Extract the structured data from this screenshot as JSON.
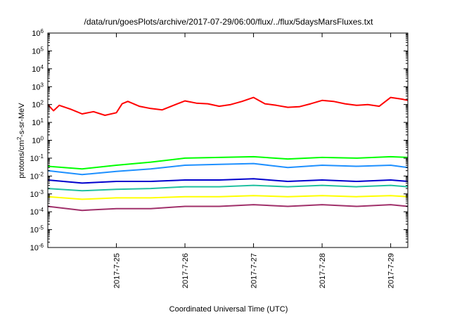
{
  "chart_data": {
    "type": "line",
    "title": "/data/run/goesPlots/archive/2017-07-29/06:00/flux/../flux/5daysMarsFluxes.txt",
    "xlabel": "Coordinated Universal Time (UTC)",
    "ylabel_main": "protons/cm",
    "ylabel_sup": "2",
    "ylabel_rest": "-s-sr-MeV",
    "y_scale": "log",
    "ylim": [
      1e-06,
      1000000.0
    ],
    "xlim": [
      "2017-07-24 00:00",
      "2017-07-29 06:00"
    ],
    "grid": false,
    "legend": "none",
    "y_ticks": [
      {
        "exp": -6,
        "base": "10",
        "sup": "-6"
      },
      {
        "exp": -5,
        "base": "10",
        "sup": "-5"
      },
      {
        "exp": -4,
        "base": "10",
        "sup": "-4"
      },
      {
        "exp": -3,
        "base": "10",
        "sup": "-3"
      },
      {
        "exp": -2,
        "base": "10",
        "sup": "-2"
      },
      {
        "exp": -1,
        "base": "10",
        "sup": "-1"
      },
      {
        "exp": 0,
        "base": "10",
        "sup": "0"
      },
      {
        "exp": 1,
        "base": "10",
        "sup": "1"
      },
      {
        "exp": 2,
        "base": "10",
        "sup": "2"
      },
      {
        "exp": 3,
        "base": "10",
        "sup": "3"
      },
      {
        "exp": 4,
        "base": "10",
        "sup": "4"
      },
      {
        "exp": 5,
        "base": "10",
        "sup": "5"
      },
      {
        "exp": 6,
        "base": "10",
        "sup": "6"
      }
    ],
    "x_ticks": [
      {
        "label": "2017-7-25",
        "x": "2017-07-25 00:00"
      },
      {
        "label": "2017-7-26",
        "x": "2017-07-26 00:00"
      },
      {
        "label": "2017-7-27",
        "x": "2017-07-27 00:00"
      },
      {
        "label": "2017-7-28",
        "x": "2017-07-28 00:00"
      },
      {
        "label": "2017-7-29",
        "x": "2017-07-29 00:00"
      }
    ],
    "series": [
      {
        "color": "#ff0000",
        "x": [
          "2017-07-24 00:00",
          "2017-07-24 02:00",
          "2017-07-24 04:00",
          "2017-07-24 08:00",
          "2017-07-24 12:00",
          "2017-07-24 16:00",
          "2017-07-24 20:00",
          "2017-07-25 00:00",
          "2017-07-25 02:00",
          "2017-07-25 04:00",
          "2017-07-25 08:00",
          "2017-07-25 12:00",
          "2017-07-25 16:00",
          "2017-07-25 20:00",
          "2017-07-26 00:00",
          "2017-07-26 04:00",
          "2017-07-26 08:00",
          "2017-07-26 12:00",
          "2017-07-26 16:00",
          "2017-07-26 20:00",
          "2017-07-27 00:00",
          "2017-07-27 04:00",
          "2017-07-27 08:00",
          "2017-07-27 12:00",
          "2017-07-27 16:00",
          "2017-07-27 20:00",
          "2017-07-28 00:00",
          "2017-07-28 04:00",
          "2017-07-28 08:00",
          "2017-07-28 12:00",
          "2017-07-28 16:00",
          "2017-07-28 20:00",
          "2017-07-29 00:00",
          "2017-07-29 04:00",
          "2017-07-29 06:00"
        ],
        "y": [
          100,
          45,
          90,
          55,
          30,
          40,
          25,
          35,
          110,
          150,
          80,
          60,
          50,
          90,
          160,
          120,
          110,
          80,
          100,
          150,
          250,
          110,
          90,
          70,
          75,
          110,
          170,
          150,
          110,
          90,
          100,
          80,
          250,
          200,
          170
        ]
      },
      {
        "color": "#00ff00",
        "x": [
          "2017-07-24 00:00",
          "2017-07-24 12:00",
          "2017-07-25 00:00",
          "2017-07-25 12:00",
          "2017-07-26 00:00",
          "2017-07-26 12:00",
          "2017-07-27 00:00",
          "2017-07-27 12:00",
          "2017-07-28 00:00",
          "2017-07-28 12:00",
          "2017-07-29 00:00",
          "2017-07-29 06:00"
        ],
        "y": [
          0.035,
          0.025,
          0.04,
          0.06,
          0.1,
          0.11,
          0.12,
          0.09,
          0.11,
          0.1,
          0.12,
          0.11
        ]
      },
      {
        "color": "#1e90ff",
        "x": [
          "2017-07-24 00:00",
          "2017-07-24 12:00",
          "2017-07-25 00:00",
          "2017-07-25 12:00",
          "2017-07-26 00:00",
          "2017-07-26 12:00",
          "2017-07-27 00:00",
          "2017-07-27 12:00",
          "2017-07-28 00:00",
          "2017-07-28 12:00",
          "2017-07-29 00:00",
          "2017-07-29 06:00"
        ],
        "y": [
          0.02,
          0.012,
          0.018,
          0.025,
          0.04,
          0.045,
          0.05,
          0.03,
          0.04,
          0.035,
          0.04,
          0.03
        ]
      },
      {
        "color": "#0000cd",
        "x": [
          "2017-07-24 00:00",
          "2017-07-24 12:00",
          "2017-07-25 00:00",
          "2017-07-25 12:00",
          "2017-07-26 00:00",
          "2017-07-26 12:00",
          "2017-07-27 00:00",
          "2017-07-27 12:00",
          "2017-07-28 00:00",
          "2017-07-28 12:00",
          "2017-07-29 00:00",
          "2017-07-29 06:00"
        ],
        "y": [
          0.006,
          0.004,
          0.005,
          0.005,
          0.006,
          0.006,
          0.007,
          0.005,
          0.006,
          0.005,
          0.006,
          0.005
        ]
      },
      {
        "color": "#20c0a0",
        "x": [
          "2017-07-24 00:00",
          "2017-07-24 12:00",
          "2017-07-25 00:00",
          "2017-07-25 12:00",
          "2017-07-26 00:00",
          "2017-07-26 12:00",
          "2017-07-27 00:00",
          "2017-07-27 12:00",
          "2017-07-28 00:00",
          "2017-07-28 12:00",
          "2017-07-29 00:00",
          "2017-07-29 06:00"
        ],
        "y": [
          0.002,
          0.0015,
          0.0018,
          0.002,
          0.0025,
          0.0025,
          0.003,
          0.0025,
          0.003,
          0.0025,
          0.003,
          0.0025
        ]
      },
      {
        "color": "#ffff00",
        "x": [
          "2017-07-24 00:00",
          "2017-07-24 12:00",
          "2017-07-25 00:00",
          "2017-07-25 12:00",
          "2017-07-26 00:00",
          "2017-07-26 12:00",
          "2017-07-27 00:00",
          "2017-07-27 12:00",
          "2017-07-28 00:00",
          "2017-07-28 12:00",
          "2017-07-29 00:00",
          "2017-07-29 06:00"
        ],
        "y": [
          0.0007,
          0.0005,
          0.0006,
          0.0006,
          0.0007,
          0.0007,
          0.0008,
          0.0007,
          0.0008,
          0.0007,
          0.0008,
          0.0007
        ]
      },
      {
        "color": "#a0306a",
        "x": [
          "2017-07-24 00:00",
          "2017-07-24 12:00",
          "2017-07-25 00:00",
          "2017-07-25 12:00",
          "2017-07-26 00:00",
          "2017-07-26 12:00",
          "2017-07-27 00:00",
          "2017-07-27 12:00",
          "2017-07-28 00:00",
          "2017-07-28 12:00",
          "2017-07-29 00:00",
          "2017-07-29 06:00"
        ],
        "y": [
          0.0002,
          0.00012,
          0.00015,
          0.00015,
          0.0002,
          0.0002,
          0.00025,
          0.0002,
          0.00025,
          0.0002,
          0.00025,
          0.0002
        ]
      }
    ]
  }
}
